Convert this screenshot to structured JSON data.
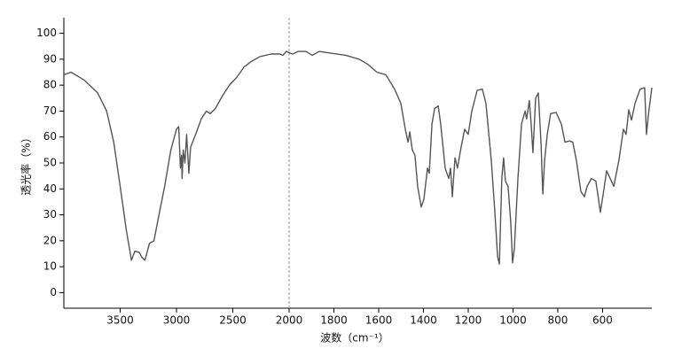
{
  "chart_data": {
    "type": "line",
    "xlabel": "波数（cm⁻¹）",
    "ylabel": "透光率（%）",
    "color": "#555555",
    "xlim": [
      4000,
      380
    ],
    "x_break": 2000,
    "ylim": [
      -6,
      106
    ],
    "xticks": [
      3500,
      3000,
      2500,
      2000,
      1800,
      1600,
      1400,
      1200,
      1000,
      800,
      600
    ],
    "yticks": [
      0,
      10,
      20,
      30,
      40,
      50,
      60,
      70,
      80,
      90,
      100
    ],
    "x": [
      4000,
      3937,
      3820,
      3700,
      3620,
      3557,
      3500,
      3445,
      3400,
      3370,
      3330,
      3305,
      3280,
      3240,
      3200,
      3160,
      3105,
      3050,
      3000,
      2980,
      2965,
      2955,
      2950,
      2940,
      2925,
      2910,
      2890,
      2875,
      2830,
      2780,
      2735,
      2700,
      2655,
      2590,
      2530,
      2465,
      2400,
      2340,
      2260,
      2160,
      2080,
      2055,
      2025,
      2000,
      1984,
      1960,
      1925,
      1897,
      1865,
      1826,
      1747,
      1687,
      1648,
      1608,
      1568,
      1529,
      1501,
      1481,
      1469,
      1461,
      1450,
      1438,
      1426,
      1410,
      1398,
      1382,
      1374,
      1362,
      1350,
      1334,
      1323,
      1303,
      1287,
      1279,
      1271,
      1259,
      1248,
      1232,
      1216,
      1200,
      1184,
      1160,
      1137,
      1121,
      1097,
      1081,
      1069,
      1061,
      1050,
      1042,
      1034,
      1022,
      1010,
      1002,
      994,
      978,
      962,
      946,
      939,
      927,
      919,
      911,
      899,
      887,
      875,
      867,
      859,
      847,
      832,
      808,
      784,
      768,
      748,
      733,
      717,
      697,
      681,
      669,
      650,
      630,
      618,
      610,
      598,
      582,
      566,
      550,
      527,
      507,
      495,
      483,
      471,
      455,
      432,
      412,
      404,
      396,
      380
    ],
    "values": [
      84,
      85,
      82,
      77,
      70,
      58,
      41,
      24,
      12.5,
      16,
      15.5,
      13.5,
      12.5,
      19,
      20,
      29,
      41,
      55,
      63,
      64,
      48,
      53,
      44,
      55,
      50,
      61,
      46,
      56,
      61,
      67,
      70,
      69,
      71,
      76,
      80,
      83,
      87,
      89,
      91,
      92,
      92,
      91.5,
      93,
      92.5,
      92,
      93,
      93,
      91.5,
      93,
      92.5,
      91.5,
      90,
      88,
      85,
      84,
      78.5,
      73,
      63,
      58,
      62,
      55,
      53,
      41,
      33,
      36,
      48,
      46,
      65,
      71,
      72,
      65,
      48,
      44,
      48,
      37,
      52,
      48,
      56,
      63,
      61,
      70,
      78,
      78.5,
      73,
      51,
      31,
      14,
      11,
      44,
      52,
      43,
      41,
      27,
      11.5,
      17,
      44,
      65,
      70,
      67,
      74,
      65,
      54,
      75,
      77,
      58,
      38,
      51,
      61,
      69,
      69.5,
      65,
      58,
      58.5,
      58,
      51,
      39,
      37,
      41,
      44,
      43,
      36,
      31,
      37.5,
      47,
      44,
      41,
      51,
      63,
      61,
      70.5,
      66.5,
      73,
      78.5,
      79,
      61,
      68,
      79
    ]
  }
}
